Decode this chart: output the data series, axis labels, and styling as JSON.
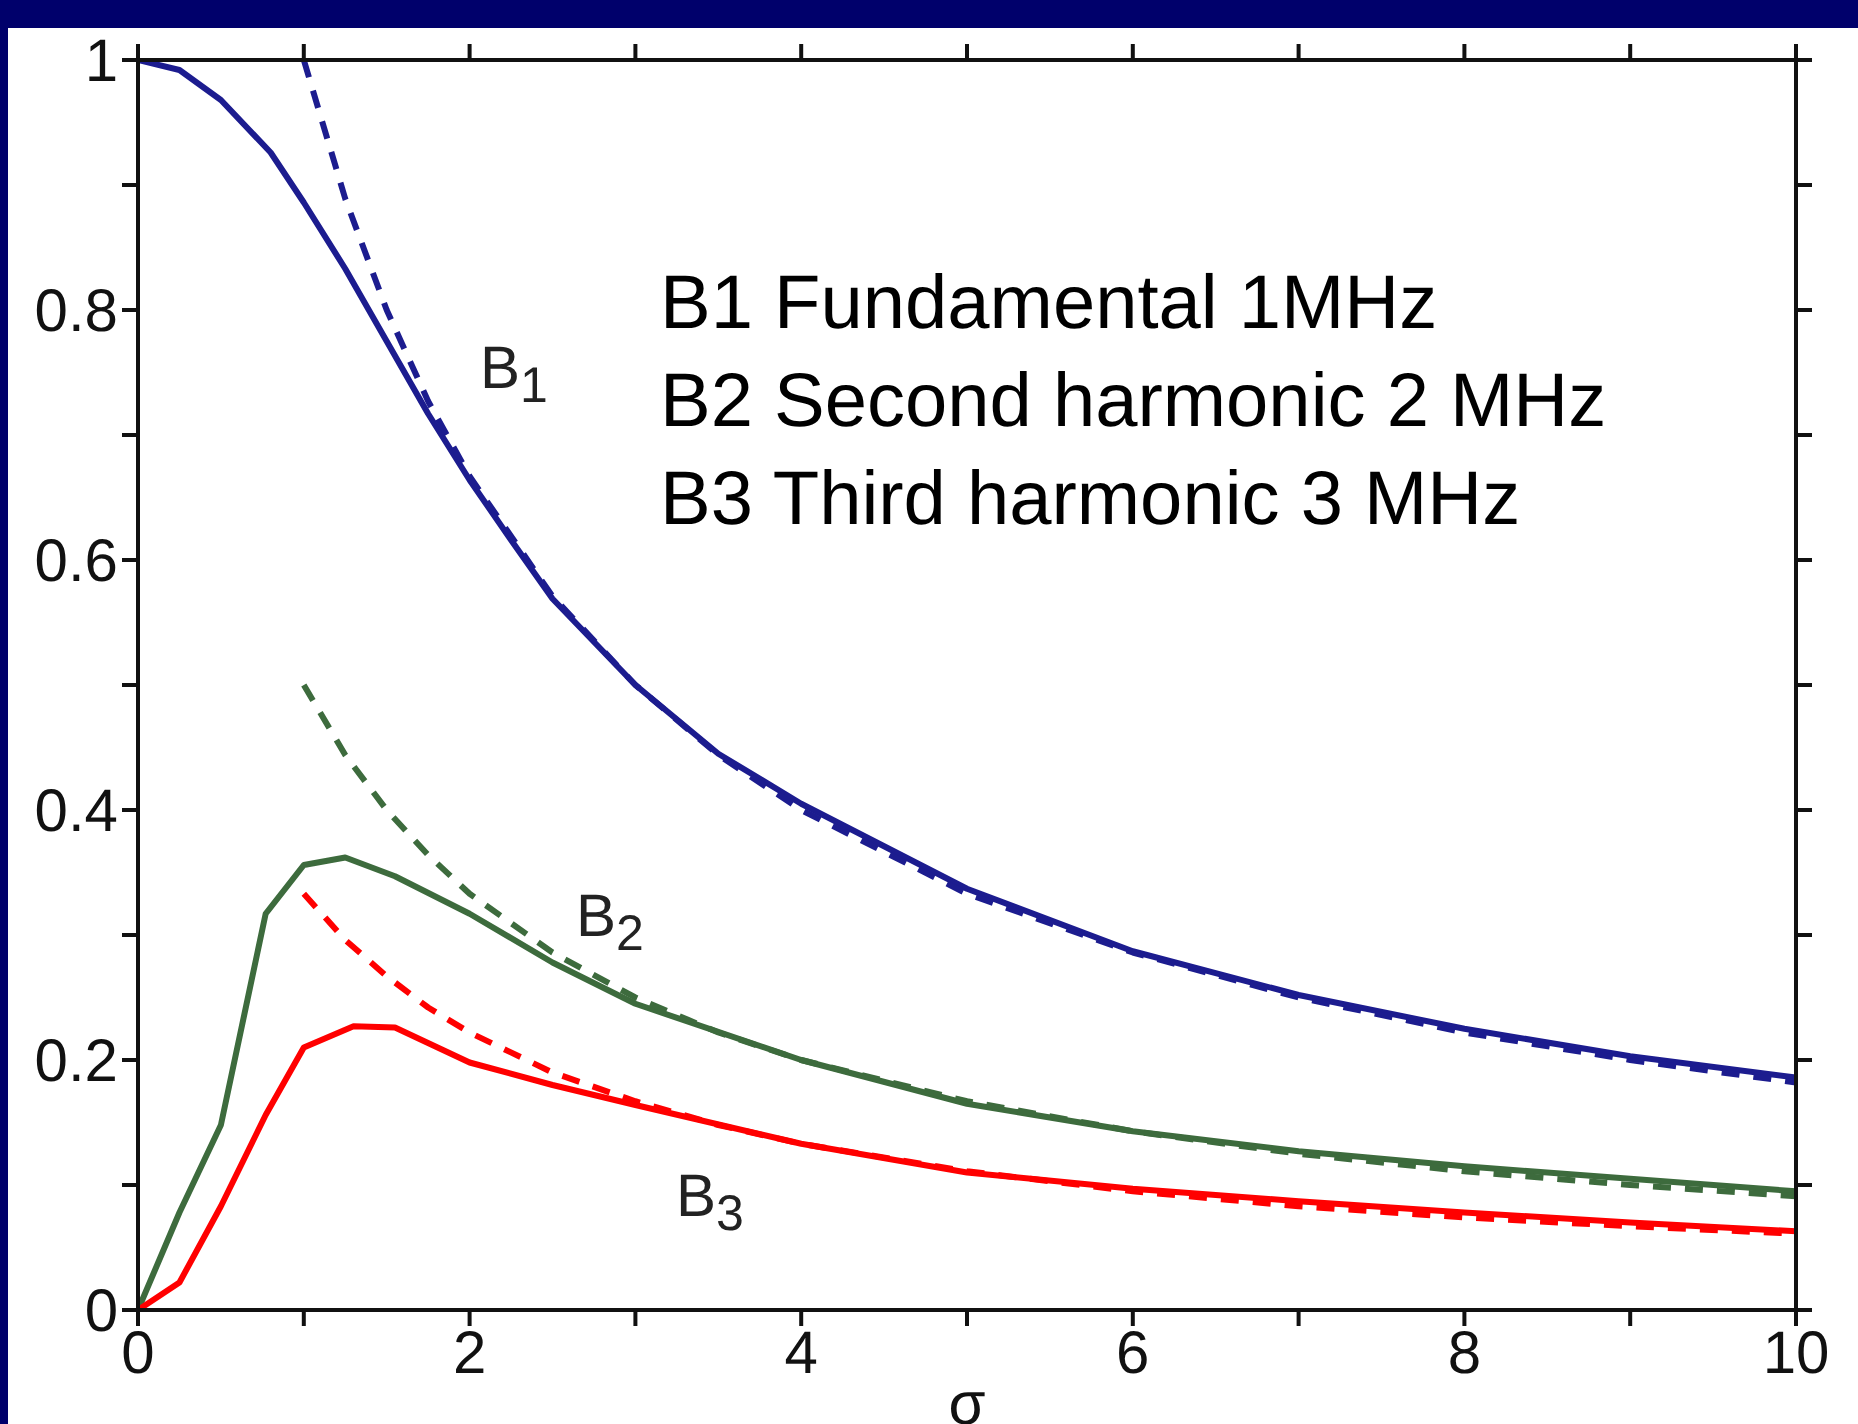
{
  "chart_data": {
    "type": "line",
    "xlabel": "σ",
    "xlim": [
      0,
      10
    ],
    "xticks": [
      0,
      {
        "value": 1,
        "label": null
      },
      2,
      {
        "value": 3,
        "label": null
      },
      4,
      {
        "value": 5,
        "label": null
      },
      6,
      {
        "value": 7,
        "label": null
      },
      8,
      {
        "value": 9,
        "label": null
      },
      10
    ],
    "ylim": [
      0,
      1
    ],
    "yticks": [
      0,
      {
        "value": 0.1,
        "label": null
      },
      0.2,
      {
        "value": 0.3,
        "label": null
      },
      0.4,
      {
        "value": 0.5,
        "label": null
      },
      0.6,
      {
        "value": 0.7,
        "label": null
      },
      0.8,
      {
        "value": 0.9,
        "label": null
      },
      1
    ],
    "legend": false,
    "marker": "none",
    "series": [
      {
        "color": "#1c1c8f",
        "line_style": "solid",
        "x": [
          0,
          0.25,
          0.5,
          0.8,
          1,
          1.25,
          1.5,
          1.75,
          2,
          2.25,
          2.5,
          3,
          3.5,
          4,
          5,
          6,
          7,
          8,
          9,
          10
        ],
        "values": [
          1,
          0.992,
          0.968,
          0.926,
          0.886,
          0.833,
          0.775,
          0.717,
          0.664,
          0.616,
          0.569,
          0.5,
          0.445,
          0.405,
          0.337,
          0.287,
          0.252,
          0.225,
          0.203,
          0.186
        ]
      },
      {
        "color": "#1c1c8f",
        "line_style": "dashed",
        "x": [
          1,
          1.25,
          1.5,
          1.75,
          2,
          2.5,
          3,
          3.5,
          4,
          5,
          6,
          7,
          8,
          9,
          10
        ],
        "values": [
          1,
          0.889,
          0.8,
          0.727,
          0.667,
          0.571,
          0.5,
          0.444,
          0.4,
          0.333,
          0.286,
          0.25,
          0.222,
          0.2,
          0.182
        ]
      },
      {
        "color": "#3d6b3d",
        "line_style": "solid",
        "x": [
          0,
          0.25,
          0.5,
          0.77,
          1,
          1.25,
          1.55,
          2,
          2.5,
          3,
          4,
          5,
          6,
          7,
          8,
          9,
          10
        ],
        "values": [
          0,
          0.078,
          0.148,
          0.317,
          0.356,
          0.362,
          0.347,
          0.317,
          0.278,
          0.245,
          0.2,
          0.165,
          0.143,
          0.127,
          0.115,
          0.105,
          0.095
        ]
      },
      {
        "color": "#3d6b3d",
        "line_style": "dashed",
        "x": [
          1,
          1.25,
          1.5,
          1.75,
          2,
          2.5,
          3,
          3.5,
          4,
          5,
          6,
          7,
          8,
          9,
          10
        ],
        "values": [
          0.5,
          0.444,
          0.4,
          0.364,
          0.333,
          0.286,
          0.25,
          0.222,
          0.2,
          0.167,
          0.143,
          0.125,
          0.111,
          0.1,
          0.091
        ]
      },
      {
        "color": "#ff0000",
        "line_style": "solid",
        "x": [
          0,
          0.25,
          0.5,
          0.77,
          1,
          1.3,
          1.55,
          2,
          2.5,
          3,
          4,
          5,
          6,
          7,
          8,
          9,
          10
        ],
        "values": [
          0,
          0.022,
          0.083,
          0.156,
          0.21,
          0.227,
          0.226,
          0.198,
          0.18,
          0.164,
          0.133,
          0.11,
          0.097,
          0.087,
          0.078,
          0.07,
          0.063
        ]
      },
      {
        "color": "#ff0000",
        "line_style": "dashed",
        "x": [
          1,
          1.25,
          1.5,
          1.75,
          2,
          2.5,
          3,
          3.5,
          4,
          5,
          6,
          7,
          8,
          9,
          10
        ],
        "values": [
          0.333,
          0.296,
          0.267,
          0.242,
          0.222,
          0.19,
          0.167,
          0.148,
          0.133,
          0.111,
          0.095,
          0.083,
          0.074,
          0.067,
          0.061
        ]
      }
    ],
    "annotations": [
      "B$_{1}$",
      "B$_{2}$",
      "B$_{3}$",
      "B1 Fundamental 1MHz",
      "B2 Second harmonic 2 MHz",
      "B3 Third harmonic 3 MHz"
    ]
  }
}
